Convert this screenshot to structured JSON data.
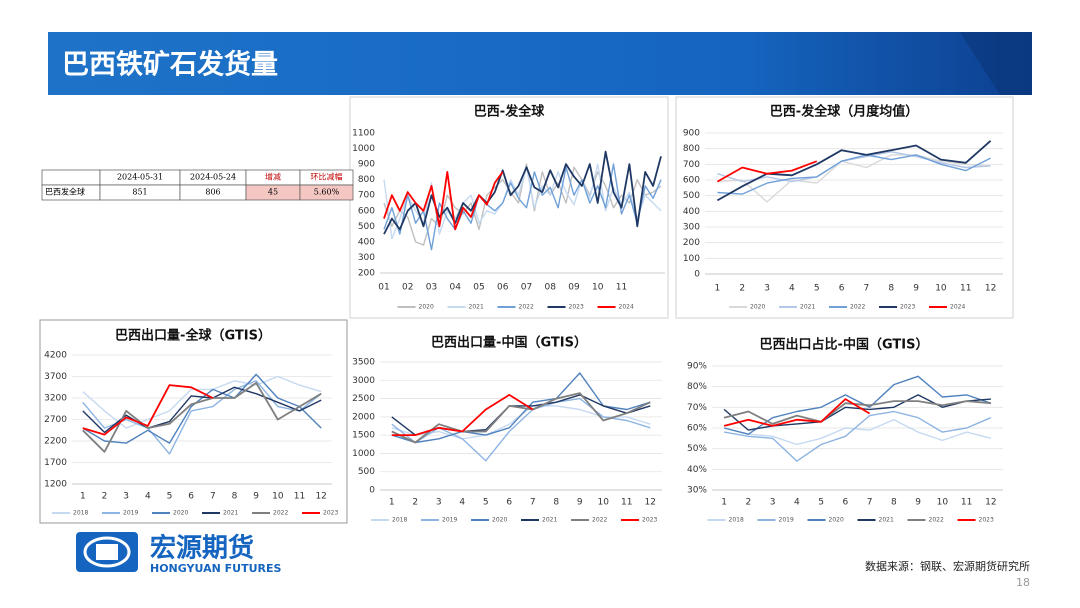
{
  "header": {
    "title": "巴西铁矿石发货量"
  },
  "table": {
    "header": [
      "",
      "2024-05-31",
      "2024-05-24",
      "增减",
      "环比减幅"
    ],
    "rows": [
      [
        "巴西发全球",
        "851",
        "806",
        "45",
        "5.60%"
      ]
    ]
  },
  "chart_data": [
    {
      "type": "line",
      "title": "巴西-发全球",
      "grid": false,
      "legend": "bottom",
      "categories": [
        "01",
        null,
        null,
        "02",
        null,
        null,
        "03",
        null,
        null,
        "04",
        null,
        null,
        "05",
        null,
        null,
        "06",
        null,
        null,
        "07",
        null,
        null,
        "08",
        null,
        null,
        "09",
        null,
        null,
        "10",
        null,
        null,
        "11",
        null,
        null,
        null,
        null,
        null
      ],
      "ylim": [
        200,
        1100
      ],
      "yticks": [
        200,
        300,
        400,
        500,
        600,
        700,
        800,
        900,
        1000,
        1100
      ],
      "series": [
        {
          "name": "2020",
          "color": "#bfbfbf",
          "values": [
            650,
            500,
            600,
            560,
            400,
            380,
            550,
            500,
            700,
            620,
            580,
            650,
            480,
            700,
            750,
            800,
            720,
            650,
            900,
            600,
            850,
            700,
            780,
            650,
            880,
            800,
            700,
            850,
            760,
            620,
            700,
            650,
            800,
            700,
            720,
            760
          ]
        },
        {
          "name": "2021",
          "color": "#c5d9f1",
          "values": [
            800,
            420,
            550,
            700,
            600,
            520,
            780,
            450,
            600,
            550,
            650,
            700,
            520,
            600,
            580,
            650,
            800,
            700,
            880,
            620,
            760,
            700,
            850,
            720,
            640,
            800,
            680,
            900,
            600,
            750,
            640,
            720,
            550,
            700,
            650,
            600
          ]
        },
        {
          "name": "2022",
          "color": "#6fa0d8",
          "values": [
            480,
            620,
            450,
            700,
            520,
            600,
            350,
            650,
            550,
            480,
            600,
            520,
            700,
            640,
            600,
            650,
            780,
            680,
            620,
            850,
            700,
            750,
            620,
            880,
            700,
            800,
            650,
            760,
            620,
            900,
            580,
            700,
            520,
            760,
            680,
            800
          ]
        },
        {
          "name": "2023",
          "color": "#1f3864",
          "values": [
            450,
            550,
            480,
            600,
            650,
            500,
            700,
            560,
            620,
            520,
            650,
            600,
            700,
            650,
            720,
            860,
            700,
            760,
            880,
            750,
            720,
            860,
            750,
            900,
            820,
            760,
            900,
            650,
            980,
            720,
            620,
            900,
            500,
            850,
            760,
            950
          ]
        },
        {
          "name": "2024",
          "color": "#ff0000",
          "values": [
            550,
            700,
            600,
            720,
            650,
            600,
            760,
            500,
            850,
            480,
            620,
            560,
            700,
            640,
            780,
            850,
            null,
            null,
            null,
            null,
            null,
            null,
            null,
            null,
            null,
            null,
            null,
            null,
            null,
            null,
            null,
            null,
            null,
            null,
            null,
            null
          ]
        }
      ]
    },
    {
      "type": "line",
      "title": "巴西-发全球（月度均值）",
      "grid": true,
      "legend": "bottom",
      "categories": [
        "1",
        "2",
        "3",
        "4",
        "5",
        "6",
        "7",
        "8",
        "9",
        "10",
        "11",
        "12"
      ],
      "ylim": [
        0,
        900
      ],
      "yticks": [
        0,
        100,
        200,
        300,
        400,
        500,
        600,
        700,
        800,
        900
      ],
      "series": [
        {
          "name": "2020",
          "color": "#d9d9d9",
          "values": [
            590,
            600,
            460,
            600,
            580,
            720,
            680,
            760,
            760,
            720,
            700,
            690
          ]
        },
        {
          "name": "2021",
          "color": "#b4c7e7",
          "values": [
            640,
            590,
            620,
            590,
            620,
            720,
            750,
            780,
            750,
            710,
            680,
            690
          ]
        },
        {
          "name": "2022",
          "color": "#6fa0d8",
          "values": [
            520,
            510,
            580,
            610,
            620,
            720,
            760,
            730,
            760,
            700,
            660,
            740
          ]
        },
        {
          "name": "2023",
          "color": "#1f3864",
          "values": [
            470,
            560,
            640,
            630,
            700,
            790,
            760,
            790,
            820,
            730,
            710,
            850
          ]
        },
        {
          "name": "2024",
          "color": "#ff0000",
          "values": [
            590,
            680,
            640,
            660,
            720,
            null,
            null,
            null,
            null,
            null,
            null,
            null
          ]
        }
      ]
    },
    {
      "type": "line",
      "title": "巴西出口量-全球（GTIS）",
      "grid": true,
      "legend": "bottom",
      "categories": [
        "1",
        "2",
        "3",
        "4",
        "5",
        "6",
        "7",
        "8",
        "9",
        "10",
        "11",
        "12"
      ],
      "ylim": [
        1200,
        4200
      ],
      "yticks": [
        1200,
        1700,
        2200,
        2700,
        3200,
        3700,
        4200
      ],
      "series": [
        {
          "name": "2018",
          "color": "#c5d9f1",
          "values": [
            3350,
            2900,
            2500,
            2700,
            2900,
            3400,
            3400,
            3600,
            3500,
            3700,
            3500,
            3350
          ]
        },
        {
          "name": "2019",
          "color": "#8db4e2",
          "values": [
            3100,
            2500,
            2700,
            2500,
            1900,
            2900,
            3000,
            3400,
            3600,
            3000,
            2900,
            3300
          ]
        },
        {
          "name": "2020",
          "color": "#4f81bd",
          "values": [
            2500,
            2200,
            2150,
            2450,
            2150,
            3000,
            3400,
            3200,
            3750,
            3200,
            3000,
            2500
          ]
        },
        {
          "name": "2021",
          "color": "#1f3864",
          "values": [
            2900,
            2400,
            2800,
            2500,
            2650,
            3250,
            3200,
            3450,
            3300,
            3100,
            2900,
            3150
          ]
        },
        {
          "name": "2022",
          "color": "#7f7f7f",
          "values": [
            2450,
            1950,
            2900,
            2500,
            2600,
            3050,
            3200,
            3200,
            3550,
            2700,
            3000,
            3300
          ]
        },
        {
          "name": "2023",
          "color": "#ff0000",
          "values": [
            2500,
            2350,
            2750,
            2550,
            3500,
            3450,
            3200,
            null,
            null,
            null,
            null,
            null
          ]
        }
      ]
    },
    {
      "type": "line",
      "title": "巴西出口量-中国（GTIS）",
      "grid": true,
      "legend": "bottom",
      "categories": [
        "1",
        "2",
        "3",
        "4",
        "5",
        "6",
        "7",
        "8",
        "9",
        "10",
        "11",
        "12"
      ],
      "ylim": [
        0,
        3500
      ],
      "yticks": [
        0,
        500,
        1000,
        1500,
        2000,
        2500,
        3000,
        3500
      ],
      "series": [
        {
          "name": "2018",
          "color": "#c5d9f1",
          "values": [
            1700,
            1500,
            1600,
            1400,
            1500,
            1800,
            2300,
            2300,
            2200,
            2000,
            2000,
            1800
          ]
        },
        {
          "name": "2019",
          "color": "#8db4e2",
          "values": [
            1800,
            1300,
            1700,
            1400,
            800,
            1600,
            2200,
            2400,
            2500,
            2000,
            1900,
            1700
          ]
        },
        {
          "name": "2020",
          "color": "#4f81bd",
          "values": [
            1500,
            1300,
            1400,
            1600,
            1500,
            1700,
            2400,
            2500,
            3200,
            2300,
            2200,
            2400
          ]
        },
        {
          "name": "2021",
          "color": "#1f3864",
          "values": [
            2000,
            1500,
            1700,
            1600,
            1650,
            2300,
            2300,
            2400,
            2600,
            2300,
            2100,
            2300
          ]
        },
        {
          "name": "2022",
          "color": "#7f7f7f",
          "values": [
            1600,
            1300,
            1800,
            1600,
            1600,
            2300,
            2200,
            2500,
            2650,
            1900,
            2100,
            2400
          ]
        },
        {
          "name": "2023",
          "color": "#ff0000",
          "values": [
            1500,
            1500,
            1700,
            1600,
            2200,
            2600,
            2200,
            null,
            null,
            null,
            null,
            null
          ]
        }
      ]
    },
    {
      "type": "line",
      "title": "巴西出口占比-中国（GTIS）",
      "grid": true,
      "legend": "bottom",
      "categories": [
        "1",
        "2",
        "3",
        "4",
        "5",
        "6",
        "7",
        "8",
        "9",
        "10",
        "11",
        "12"
      ],
      "ylim": [
        30,
        90
      ],
      "yticks": [
        {
          "value": 30,
          "label": "30%"
        },
        {
          "value": 40,
          "label": "40%"
        },
        {
          "value": 50,
          "label": "50%"
        },
        {
          "value": 60,
          "label": "60%"
        },
        {
          "value": 70,
          "label": "70%"
        },
        {
          "value": 80,
          "label": "80%"
        },
        {
          "value": 90,
          "label": "90%"
        }
      ],
      "series": [
        {
          "name": "2018",
          "color": "#c5d9f1",
          "values": [
            60,
            57,
            56,
            52,
            55,
            60,
            59,
            64,
            58,
            54,
            58,
            55
          ]
        },
        {
          "name": "2019",
          "color": "#8db4e2",
          "values": [
            58,
            56,
            55,
            44,
            52,
            56,
            66,
            68,
            65,
            58,
            60,
            65
          ]
        },
        {
          "name": "2020",
          "color": "#4f81bd",
          "values": [
            60,
            57,
            65,
            68,
            70,
            76,
            70,
            81,
            85,
            75,
            76,
            72
          ]
        },
        {
          "name": "2021",
          "color": "#1f3864",
          "values": [
            69,
            59,
            61,
            62,
            63,
            70,
            69,
            70,
            76,
            70,
            73,
            74
          ]
        },
        {
          "name": "2022",
          "color": "#7f7f7f",
          "values": [
            65,
            68,
            62,
            66,
            63,
            72,
            71,
            73,
            73,
            71,
            73,
            72
          ]
        },
        {
          "name": "2023",
          "color": "#ff0000",
          "values": [
            61,
            64,
            61,
            64,
            63,
            74,
            67,
            null,
            null,
            null,
            null,
            null
          ]
        }
      ]
    }
  ],
  "logo": {
    "name": "宏源期货",
    "english": "HONGYUAN FUTURES"
  },
  "footer": {
    "source": "数据来源：钢联、宏源期货研究所",
    "page": "18"
  }
}
